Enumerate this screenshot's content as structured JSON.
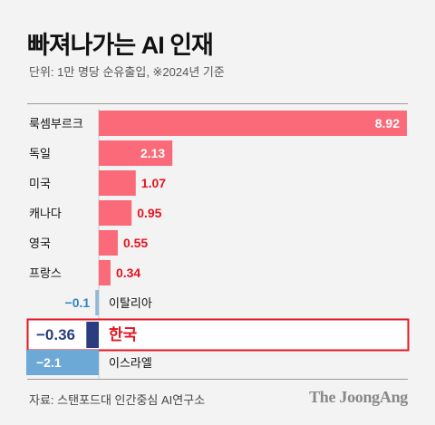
{
  "header": {
    "title": "빠져나가는 AI 인재",
    "subtitle": "단위: 1만 명당 순유출입, ※2024년 기준"
  },
  "footer": {
    "source": "자료: 스탠포드대 인간중심 AI연구소",
    "logo": "The JoongAng"
  },
  "colors": {
    "positive": "#fa6a78",
    "positive_label": "#e3141f",
    "negative_light": "#91b8d8",
    "negative_light_label": "#2f86bf",
    "korea_bar": "#293d80",
    "korea_highlight": "#e3141f",
    "israel_bar": "#6da9d7",
    "axis": "#c9c9c9"
  },
  "chart_data": {
    "type": "bar",
    "orientation": "horizontal",
    "title": "빠져나가는 AI 인재",
    "subtitle": "단위: 1만 명당 순유출입, ※2024년 기준",
    "categories": [
      "룩셈부르크",
      "독일",
      "미국",
      "캐나다",
      "영국",
      "프랑스",
      "이탈리아",
      "한국",
      "이스라엘"
    ],
    "values": [
      8.92,
      2.13,
      1.07,
      0.95,
      0.55,
      0.34,
      -0.1,
      -0.36,
      -2.1
    ],
    "value_labels": [
      "8.92",
      "2.13",
      "1.07",
      "0.95",
      "0.55",
      "0.34",
      "−0.1",
      "−0.36",
      "−2.1"
    ],
    "highlight": "한국",
    "xlim": [
      -2.1,
      8.92
    ],
    "grid": false,
    "legend": "none"
  }
}
